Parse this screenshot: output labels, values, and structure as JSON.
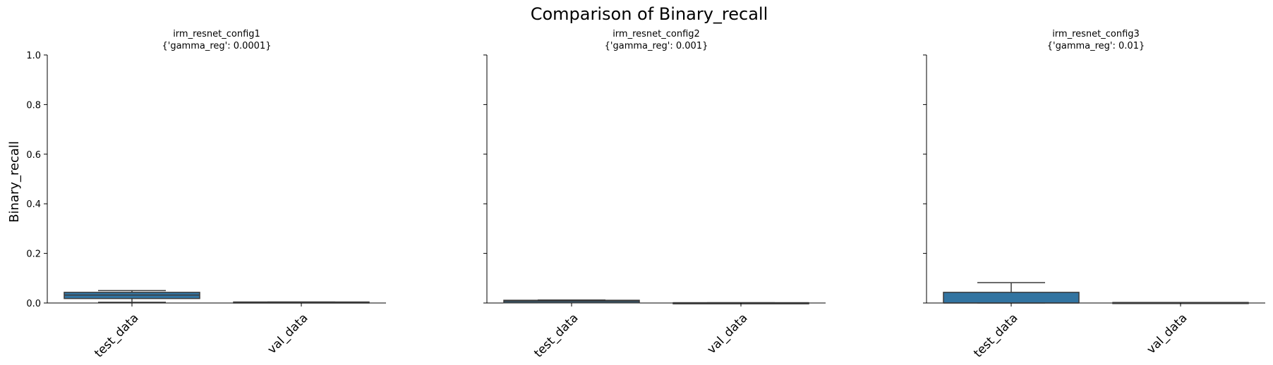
{
  "figure": {
    "title": "Comparison of Binary_recall",
    "ylabel": "Binary_recall"
  },
  "chart_data": [
    {
      "type": "box",
      "title_lines": [
        "irm_resnet_config1",
        "{'gamma_reg': 0.0001}"
      ],
      "categories": [
        "test_data",
        "val_data"
      ],
      "ylim": [
        0,
        1
      ],
      "yticks": [
        "0.0",
        "0.2",
        "0.4",
        "0.6",
        "0.8",
        "1.0"
      ],
      "show_y_tick_labels": true,
      "boxes": [
        {
          "category": "test_data",
          "whisker_low": 0.003,
          "q1": 0.018,
          "median": 0.032,
          "q3": 0.043,
          "whisker_high": 0.05
        },
        {
          "category": "val_data",
          "whisker_low": 0.002,
          "q1": 0.002,
          "median": 0.003,
          "q3": 0.004,
          "whisker_high": 0.004
        }
      ]
    },
    {
      "type": "box",
      "title_lines": [
        "irm_resnet_config2",
        "{'gamma_reg': 0.001}"
      ],
      "categories": [
        "test_data",
        "val_data"
      ],
      "ylim": [
        0,
        1
      ],
      "yticks": [
        "0.0",
        "0.2",
        "0.4",
        "0.6",
        "0.8",
        "1.0"
      ],
      "show_y_tick_labels": false,
      "boxes": [
        {
          "category": "test_data",
          "whisker_low": 0.001,
          "q1": 0.001,
          "median": 0.007,
          "q3": 0.011,
          "whisker_high": 0.012
        },
        {
          "category": "val_data",
          "whisker_low": 0.0,
          "q1": 0.0,
          "median": 0.001,
          "q3": 0.001,
          "whisker_high": 0.001
        }
      ]
    },
    {
      "type": "box",
      "title_lines": [
        "irm_resnet_config3",
        "{'gamma_reg': 0.01}"
      ],
      "categories": [
        "test_data",
        "val_data"
      ],
      "ylim": [
        0,
        1
      ],
      "yticks": [
        "0.0",
        "0.2",
        "0.4",
        "0.6",
        "0.8",
        "1.0"
      ],
      "show_y_tick_labels": false,
      "boxes": [
        {
          "category": "test_data",
          "whisker_low": 0.0,
          "q1": 0.0,
          "median": 0.0,
          "q3": 0.043,
          "whisker_high": 0.082
        },
        {
          "category": "val_data",
          "whisker_low": 0.0,
          "q1": 0.001,
          "median": 0.002,
          "q3": 0.002,
          "whisker_high": 0.002
        }
      ]
    }
  ],
  "colors": {
    "box_fill": "#3274a1",
    "box_edge": "#3a3a3a",
    "axis": "#000000"
  }
}
